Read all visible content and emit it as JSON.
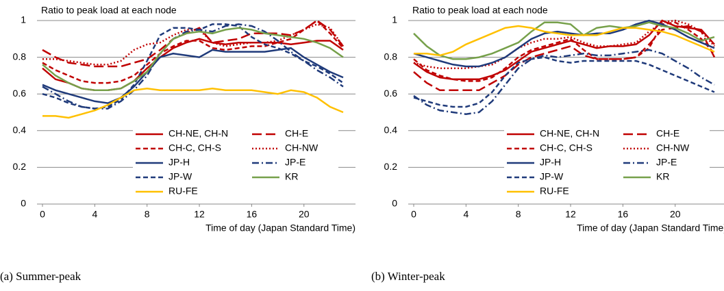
{
  "chart_data": [
    {
      "type": "line",
      "caption": "(a) Summer-peak",
      "ylabel": "Ratio to peak load at each node",
      "xlabel": "Time of day (Japan Standard Time)",
      "x": [
        0,
        1,
        2,
        3,
        4,
        5,
        6,
        7,
        8,
        9,
        10,
        11,
        12,
        13,
        14,
        15,
        16,
        17,
        18,
        19,
        20,
        21,
        22,
        23
      ],
      "xlim": [
        0,
        23
      ],
      "xticks": [
        0,
        4,
        8,
        12,
        16,
        20
      ],
      "ylim": [
        0,
        1
      ],
      "yticks": [
        0,
        0.2,
        0.4,
        0.6,
        0.8,
        1
      ],
      "grid": true,
      "series": [
        {
          "name": "CH-NE, CH-N",
          "color": "#c00000",
          "style": "solid",
          "values": [
            0.74,
            0.68,
            0.66,
            0.63,
            0.62,
            0.62,
            0.63,
            0.67,
            0.74,
            0.8,
            0.85,
            0.88,
            0.9,
            0.88,
            0.87,
            0.88,
            0.88,
            0.88,
            0.88,
            0.87,
            0.88,
            0.89,
            0.89,
            0.84
          ]
        },
        {
          "name": "CH-E",
          "color": "#c00000",
          "style": "long-dash",
          "values": [
            0.84,
            0.8,
            0.77,
            0.76,
            0.75,
            0.75,
            0.75,
            0.77,
            0.79,
            0.84,
            0.9,
            0.93,
            0.96,
            0.88,
            0.89,
            0.9,
            0.93,
            0.93,
            0.93,
            0.92,
            0.95,
            1.0,
            0.95,
            0.86
          ]
        },
        {
          "name": "CH-C, CH-S",
          "color": "#c00000",
          "style": "dash",
          "values": [
            0.77,
            0.73,
            0.7,
            0.67,
            0.66,
            0.66,
            0.67,
            0.7,
            0.76,
            0.82,
            0.86,
            0.89,
            0.89,
            0.85,
            0.84,
            0.85,
            0.86,
            0.86,
            0.88,
            0.9,
            0.95,
            1.0,
            0.93,
            0.85
          ]
        },
        {
          "name": "CH-NW",
          "color": "#c00000",
          "style": "dot",
          "values": [
            0.79,
            0.79,
            0.78,
            0.77,
            0.76,
            0.76,
            0.78,
            0.84,
            0.87,
            0.88,
            0.92,
            0.95,
            0.95,
            0.88,
            0.86,
            0.87,
            0.88,
            0.88,
            0.89,
            0.92,
            0.95,
            0.98,
            0.96,
            0.86
          ]
        },
        {
          "name": "JP-H",
          "color": "#1f3a7a",
          "style": "solid",
          "values": [
            0.65,
            0.62,
            0.6,
            0.58,
            0.56,
            0.55,
            0.58,
            0.64,
            0.72,
            0.8,
            0.82,
            0.81,
            0.8,
            0.84,
            0.83,
            0.83,
            0.83,
            0.83,
            0.84,
            0.85,
            0.8,
            0.76,
            0.72,
            0.69
          ]
        },
        {
          "name": "JP-E",
          "color": "#1f3a7a",
          "style": "dash-dot",
          "values": [
            0.64,
            0.6,
            0.56,
            0.53,
            0.52,
            0.52,
            0.56,
            0.62,
            0.7,
            0.82,
            0.9,
            0.94,
            0.95,
            0.94,
            0.97,
            0.98,
            0.97,
            0.94,
            0.89,
            0.83,
            0.78,
            0.73,
            0.69,
            0.64
          ]
        },
        {
          "name": "JP-W",
          "color": "#1f3a7a",
          "style": "dash",
          "values": [
            0.6,
            0.58,
            0.55,
            0.53,
            0.52,
            0.53,
            0.57,
            0.65,
            0.78,
            0.92,
            0.96,
            0.96,
            0.95,
            0.98,
            0.98,
            0.97,
            0.91,
            0.87,
            0.85,
            0.82,
            0.78,
            0.75,
            0.71,
            0.66
          ]
        },
        {
          "name": "KR",
          "color": "#76a04a",
          "style": "solid",
          "values": [
            0.76,
            0.7,
            0.66,
            0.63,
            0.62,
            0.62,
            0.63,
            0.67,
            0.72,
            0.82,
            0.9,
            0.93,
            0.94,
            0.93,
            0.95,
            0.96,
            0.95,
            0.93,
            0.92,
            0.91,
            0.9,
            0.88,
            0.85,
            0.8
          ]
        },
        {
          "name": "RU-FE",
          "color": "#ffc000",
          "style": "solid",
          "values": [
            0.48,
            0.48,
            0.47,
            0.49,
            0.51,
            0.54,
            0.58,
            0.62,
            0.63,
            0.62,
            0.62,
            0.62,
            0.62,
            0.63,
            0.62,
            0.62,
            0.62,
            0.61,
            0.6,
            0.62,
            0.61,
            0.58,
            0.53,
            0.5
          ]
        }
      ]
    },
    {
      "type": "line",
      "caption": "(b) Winter-peak",
      "ylabel": "Ratio to peak load at each node",
      "xlabel": "Time of day (Japan Standard Time)",
      "x": [
        0,
        1,
        2,
        3,
        4,
        5,
        6,
        7,
        8,
        9,
        10,
        11,
        12,
        13,
        14,
        15,
        16,
        17,
        18,
        19,
        20,
        21,
        22,
        23
      ],
      "xlim": [
        0,
        23
      ],
      "xticks": [
        0,
        4,
        8,
        12,
        16,
        20
      ],
      "ylim": [
        0,
        1
      ],
      "yticks": [
        0,
        0.2,
        0.4,
        0.6,
        0.8,
        1
      ],
      "grid": true,
      "series": [
        {
          "name": "CH-NE, CH-N",
          "color": "#c00000",
          "style": "solid",
          "values": [
            0.77,
            0.72,
            0.69,
            0.68,
            0.68,
            0.68,
            0.7,
            0.73,
            0.78,
            0.83,
            0.85,
            0.87,
            0.89,
            0.87,
            0.85,
            0.86,
            0.86,
            0.87,
            0.92,
            1.0,
            0.97,
            0.96,
            0.95,
            0.87
          ]
        },
        {
          "name": "CH-E",
          "color": "#c00000",
          "style": "long-dash",
          "values": [
            0.72,
            0.66,
            0.62,
            0.62,
            0.62,
            0.62,
            0.66,
            0.7,
            0.76,
            0.8,
            0.82,
            0.84,
            0.86,
            0.81,
            0.79,
            0.79,
            0.79,
            0.8,
            0.87,
            0.95,
            0.96,
            0.97,
            0.94,
            0.8
          ]
        },
        {
          "name": "CH-C, CH-S",
          "color": "#c00000",
          "style": "dash",
          "values": [
            0.79,
            0.73,
            0.7,
            0.68,
            0.67,
            0.67,
            0.69,
            0.74,
            0.8,
            0.84,
            0.86,
            0.88,
            0.9,
            0.84,
            0.79,
            0.79,
            0.79,
            0.8,
            0.85,
            0.98,
            0.99,
            0.95,
            0.9,
            0.82
          ]
        },
        {
          "name": "CH-NW",
          "color": "#c00000",
          "style": "dot",
          "values": [
            0.77,
            0.75,
            0.74,
            0.74,
            0.74,
            0.75,
            0.76,
            0.8,
            0.85,
            0.88,
            0.9,
            0.9,
            0.91,
            0.88,
            0.86,
            0.86,
            0.87,
            0.88,
            0.94,
            0.99,
            1.0,
            0.98,
            0.94,
            0.86
          ]
        },
        {
          "name": "JP-H",
          "color": "#1f3a7a",
          "style": "solid",
          "values": [
            0.82,
            0.8,
            0.78,
            0.76,
            0.75,
            0.75,
            0.77,
            0.8,
            0.85,
            0.9,
            0.93,
            0.94,
            0.93,
            0.92,
            0.93,
            0.93,
            0.95,
            0.98,
            1.0,
            0.98,
            0.95,
            0.91,
            0.88,
            0.85
          ]
        },
        {
          "name": "JP-E",
          "color": "#1f3a7a",
          "style": "dash-dot",
          "values": [
            0.59,
            0.54,
            0.51,
            0.5,
            0.49,
            0.5,
            0.56,
            0.65,
            0.74,
            0.79,
            0.81,
            0.8,
            0.81,
            0.82,
            0.81,
            0.81,
            0.82,
            0.83,
            0.84,
            0.82,
            0.78,
            0.74,
            0.69,
            0.65
          ]
        },
        {
          "name": "JP-W",
          "color": "#1f3a7a",
          "style": "dash",
          "values": [
            0.58,
            0.56,
            0.54,
            0.53,
            0.53,
            0.55,
            0.61,
            0.7,
            0.77,
            0.79,
            0.8,
            0.78,
            0.77,
            0.78,
            0.78,
            0.78,
            0.78,
            0.78,
            0.76,
            0.73,
            0.7,
            0.67,
            0.64,
            0.61
          ]
        },
        {
          "name": "KR",
          "color": "#76a04a",
          "style": "solid",
          "values": [
            0.93,
            0.86,
            0.81,
            0.79,
            0.79,
            0.8,
            0.82,
            0.85,
            0.88,
            0.94,
            0.99,
            0.99,
            0.98,
            0.92,
            0.96,
            0.97,
            0.96,
            0.97,
            0.99,
            0.97,
            0.96,
            0.93,
            0.89,
            0.91
          ]
        },
        {
          "name": "RU-FE",
          "color": "#ffc000",
          "style": "solid",
          "values": [
            0.82,
            0.82,
            0.81,
            0.83,
            0.87,
            0.9,
            0.93,
            0.96,
            0.97,
            0.96,
            0.94,
            0.93,
            0.92,
            0.92,
            0.92,
            0.94,
            0.96,
            0.96,
            0.95,
            0.94,
            0.92,
            0.89,
            0.86,
            0.83
          ]
        }
      ]
    }
  ]
}
